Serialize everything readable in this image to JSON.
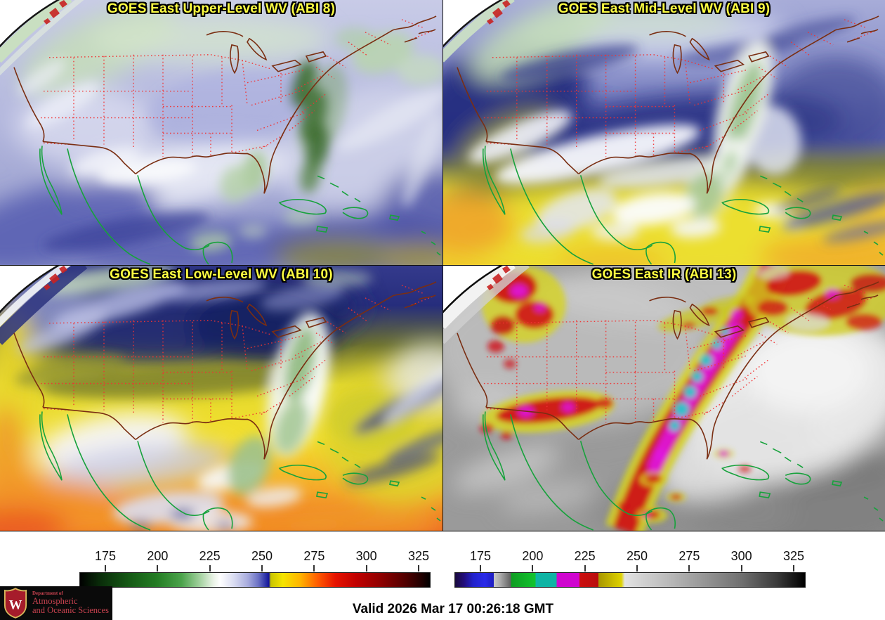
{
  "panels": [
    {
      "title": "GOES East Upper-Level WV (ABI 8)"
    },
    {
      "title": "GOES East Mid-Level WV (ABI 9)"
    },
    {
      "title": "GOES East Low-Level WV (ABI 10)"
    },
    {
      "title": "GOES East IR (ABI 13)"
    }
  ],
  "style": {
    "title_color": "#ffff42",
    "state_line_color": "#f23333",
    "us_coast_color": "#7a2e12",
    "intl_border_color": "#17a23c"
  },
  "colorbars": [
    {
      "name": "wv-temperature-scale",
      "tick_labels": [
        "175",
        "200",
        "225",
        "250",
        "275",
        "300",
        "325"
      ],
      "tick_positions_pct": [
        7.4,
        22.27,
        37.13,
        52.0,
        66.87,
        81.73,
        96.6
      ],
      "range": [
        163,
        331
      ],
      "stops": [
        [
          "#000000",
          0
        ],
        [
          "#0a2e0a",
          6
        ],
        [
          "#155915",
          14
        ],
        [
          "#247d24",
          22
        ],
        [
          "#4ba34b",
          29
        ],
        [
          "#9ecf9a",
          34
        ],
        [
          "#e8f2e4",
          38
        ],
        [
          "#ffffff",
          40
        ],
        [
          "#d9dcf1",
          44
        ],
        [
          "#a7abdd",
          48
        ],
        [
          "#6a70c4",
          51
        ],
        [
          "#2e34a8",
          53
        ],
        [
          "#13139b",
          54
        ],
        [
          "#c9c400",
          54.5
        ],
        [
          "#f5e400",
          58
        ],
        [
          "#ffb300",
          63
        ],
        [
          "#ff5a00",
          68
        ],
        [
          "#e61300",
          73
        ],
        [
          "#c00000",
          79
        ],
        [
          "#8e0000",
          86
        ],
        [
          "#520000",
          93
        ],
        [
          "#1c0000",
          98
        ],
        [
          "#000000",
          100
        ]
      ]
    },
    {
      "name": "ir-temperature-scale",
      "tick_labels": [
        "175",
        "200",
        "225",
        "250",
        "275",
        "300",
        "325"
      ],
      "tick_positions_pct": [
        7.4,
        22.27,
        37.13,
        52.0,
        66.87,
        81.73,
        96.6
      ],
      "range": [
        163,
        331
      ],
      "stops": [
        [
          "#1a0b3c",
          0
        ],
        [
          "#220d7a",
          2.5
        ],
        [
          "#2222cc",
          5.2
        ],
        [
          "#2a2ae8",
          8.5
        ],
        [
          "#1d1dc0",
          11
        ],
        [
          "#c9c9c9",
          11
        ],
        [
          "#a8a8a8",
          13
        ],
        [
          "#5f5f5f",
          16
        ],
        [
          "#0f9c22",
          16
        ],
        [
          "#12c42e",
          23
        ],
        [
          "#0fb4a4",
          23
        ],
        [
          "#0fb4a4",
          29
        ],
        [
          "#cf06cf",
          29
        ],
        [
          "#cf06cf",
          35.5
        ],
        [
          "#cc0f0f",
          35.5
        ],
        [
          "#b80d0d",
          41
        ],
        [
          "#a89600",
          41
        ],
        [
          "#ded200",
          47.5
        ],
        [
          "#e2e2e2",
          48.5
        ],
        [
          "#bdbdbd",
          60
        ],
        [
          "#9a9a9a",
          70
        ],
        [
          "#6f6f6f",
          82
        ],
        [
          "#3a3a3a",
          92
        ],
        [
          "#000000",
          100
        ]
      ]
    }
  ],
  "footer": {
    "valid_time": "Valid 2026 Mar 17 00:26:18 GMT"
  },
  "logo": {
    "department_prefix": "Department of",
    "line1": "Atmospheric",
    "line2": "and Oceanic Sciences",
    "crest_letter": "W"
  }
}
